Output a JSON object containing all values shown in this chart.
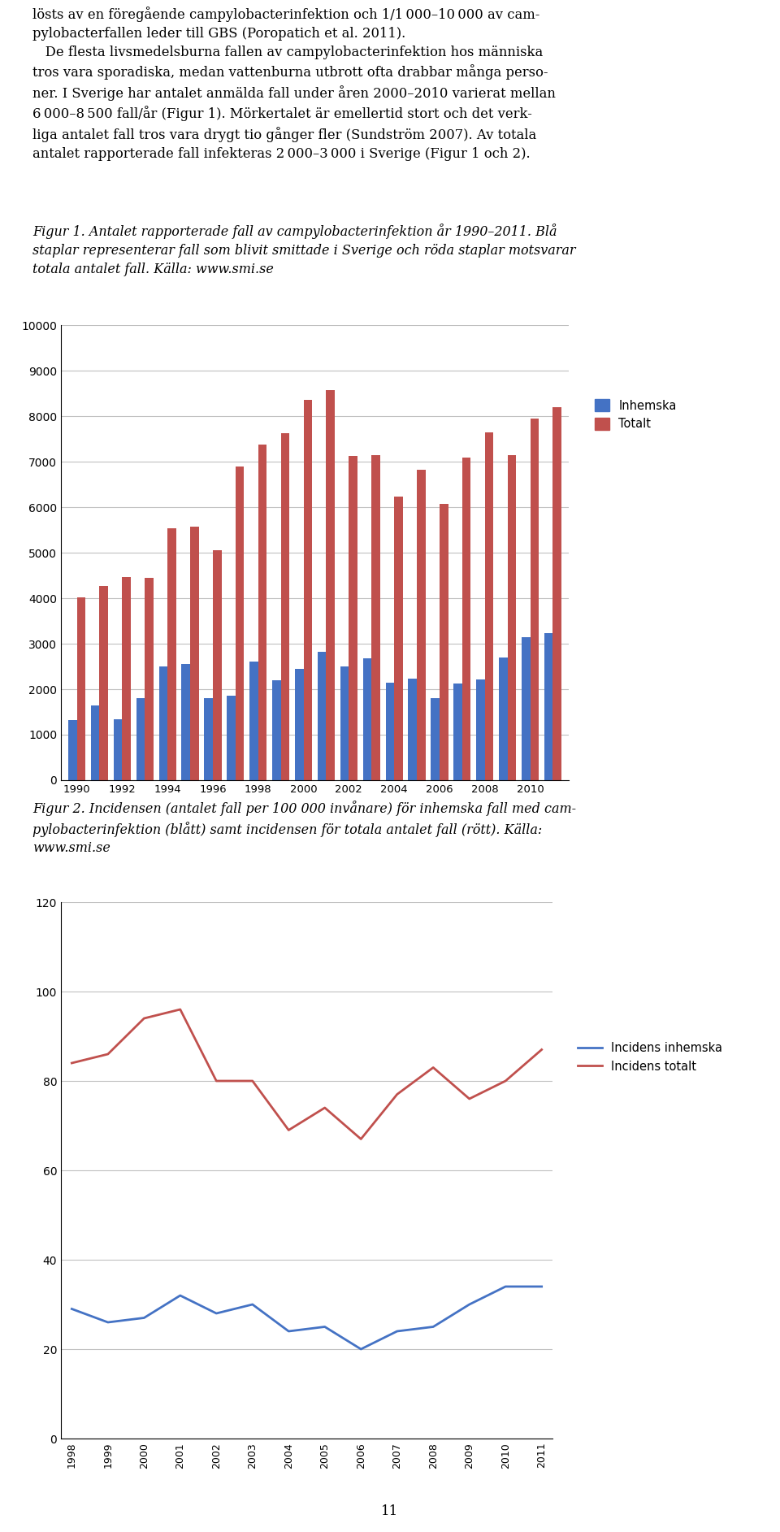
{
  "text_block_lines": [
    "lösts av en föregående campylobacterinfektion och 1/1 000–10 000 av cam-",
    "pylobacterfallen leder till GBS (Poropatich et al. 2011).",
    "   De flesta livsmedelsburna fallen av campylobacterinfektion hos människa",
    "tros vara sporadiska, medan vattenburna utbrott ofta drabbar många perso-",
    "ner. I Sverige har antalet anmälda fall under åren 2000–2010 varierat mellan",
    "6 000–8 500 fall/år (Figur 1). Mörkertalet är emellertid stort och det verk-",
    "liga antalet fall tros vara drygt tio gånger fler (Sundström 2007). Av totala",
    "antalet rapporterade fall infekteras 2 000–3 000 i Sverige (Figur 1 och 2)."
  ],
  "fig1_caption_lines": [
    "Figur 1. Antalet rapporterade fall av campylobacterinfektion år 1990–2011. Blå",
    "staplar representerar fall som blivit smittade i Sverige och röda staplar motsvarar",
    "totala antalet fall. Källa: www.smi.se"
  ],
  "fig2_caption_lines": [
    "Figur 2. Incidensen (antalet fall per 100 000 invånare) för inhemska fall med cam-",
    "pylobacterinfektion (blått) samt incidensen för totala antalet fall (rött). Källa:",
    "www.smi.se"
  ],
  "page_number": "11",
  "bar_years": [
    1990,
    1991,
    1992,
    1993,
    1994,
    1995,
    1996,
    1997,
    1998,
    1999,
    2000,
    2001,
    2002,
    2003,
    2004,
    2005,
    2006,
    2007,
    2008,
    2009,
    2010,
    2011
  ],
  "inhemska": [
    1320,
    1650,
    1340,
    1800,
    2500,
    2550,
    1800,
    1850,
    2600,
    2200,
    2450,
    2820,
    2500,
    2680,
    2150,
    2230,
    1800,
    2120,
    2220,
    2700,
    3140,
    3230
  ],
  "totalt": [
    4020,
    4270,
    4470,
    4450,
    5540,
    5570,
    5060,
    6900,
    7380,
    7620,
    8350,
    8580,
    7120,
    7140,
    6230,
    6830,
    6070,
    7090,
    7640,
    7150,
    7950,
    8200
  ],
  "bar_color_blue": "#4472C4",
  "bar_color_red": "#C0504D",
  "bar_ylim": [
    0,
    10000
  ],
  "bar_yticks": [
    0,
    1000,
    2000,
    3000,
    4000,
    5000,
    6000,
    7000,
    8000,
    9000,
    10000
  ],
  "bar_xticks": [
    1990,
    1992,
    1994,
    1996,
    1998,
    2000,
    2002,
    2004,
    2006,
    2008,
    2010
  ],
  "line_years": [
    1998,
    1999,
    2000,
    2001,
    2002,
    2003,
    2004,
    2005,
    2006,
    2007,
    2008,
    2009,
    2010,
    2011
  ],
  "incidens_inhemska": [
    29,
    26,
    27,
    32,
    28,
    30,
    24,
    25,
    20,
    24,
    25,
    30,
    34,
    34
  ],
  "incidens_totalt": [
    84,
    86,
    94,
    96,
    80,
    80,
    69,
    74,
    67,
    77,
    83,
    76,
    80,
    87
  ],
  "line_color_blue": "#4472C4",
  "line_color_red": "#C0504D",
  "line_ylim": [
    0,
    120
  ],
  "line_yticks": [
    0,
    20,
    40,
    60,
    80,
    100,
    120
  ],
  "legend_inhemska": "Inhemska",
  "legend_totalt": "Totalt",
  "legend_incidens_inhemska": "Incidens inhemska",
  "legend_incidens_totalt": "Incidens totalt",
  "text_fontsize": 11.8,
  "caption_fontsize": 11.5,
  "axis_fontsize": 10,
  "tick_fontsize": 9.5,
  "legend_fontsize": 10.5
}
